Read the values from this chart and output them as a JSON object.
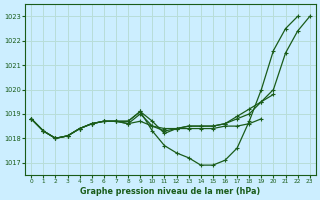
{
  "title": "Graphe pression niveau de la mer (hPa)",
  "bg_color": "#cceeff",
  "grid_color": "#b8ddd8",
  "line_color": "#1a5c1a",
  "xlim": [
    -0.5,
    23.5
  ],
  "ylim": [
    1016.5,
    1023.5
  ],
  "yticks": [
    1017,
    1018,
    1019,
    1020,
    1021,
    1022,
    1023
  ],
  "xticks": [
    0,
    1,
    2,
    3,
    4,
    5,
    6,
    7,
    8,
    9,
    10,
    11,
    12,
    13,
    14,
    15,
    16,
    17,
    18,
    19,
    20,
    21,
    22,
    23
  ],
  "series": [
    {
      "x": [
        0,
        1,
        2,
        3,
        4,
        5,
        6,
        7,
        8,
        9,
        10,
        11,
        12,
        13,
        14,
        15,
        16,
        17,
        18,
        19,
        20,
        21,
        22,
        23
      ],
      "y": [
        1018.8,
        1018.3,
        1018.0,
        1018.1,
        1018.4,
        1018.6,
        1018.7,
        1018.7,
        1018.7,
        1019.1,
        1018.7,
        1018.2,
        1018.4,
        1018.5,
        1018.5,
        1018.5,
        1018.6,
        1018.8,
        1019.0,
        1019.5,
        1020.0,
        1021.5,
        1022.4,
        1023.0
      ]
    },
    {
      "x": [
        0,
        1,
        2,
        3,
        4,
        5,
        6,
        7,
        8,
        9,
        10,
        11,
        12,
        13,
        14,
        15,
        16,
        17,
        18,
        19,
        20,
        21,
        22
      ],
      "y": [
        1018.8,
        1018.3,
        1018.0,
        1018.1,
        1018.4,
        1018.6,
        1018.7,
        1018.7,
        1018.7,
        1019.1,
        1018.3,
        1017.7,
        1017.4,
        1017.2,
        1016.9,
        1016.9,
        1017.1,
        1017.6,
        1018.7,
        1020.0,
        1021.6,
        1022.5,
        1023.0
      ]
    },
    {
      "x": [
        0,
        1,
        2,
        3,
        4,
        5,
        6,
        7,
        8,
        9,
        10,
        11,
        12,
        13,
        14,
        15,
        16,
        17,
        18,
        19,
        20
      ],
      "y": [
        1018.8,
        1018.3,
        1018.0,
        1018.1,
        1018.4,
        1018.6,
        1018.7,
        1018.7,
        1018.6,
        1019.0,
        1018.5,
        1018.3,
        1018.4,
        1018.5,
        1018.5,
        1018.5,
        1018.6,
        1018.9,
        1019.2,
        1019.5,
        1019.8
      ]
    },
    {
      "x": [
        0,
        1,
        2,
        3,
        4,
        5,
        6,
        7,
        8,
        9,
        10,
        11,
        12,
        13,
        14,
        15,
        16,
        17,
        18,
        19
      ],
      "y": [
        1018.8,
        1018.3,
        1018.0,
        1018.1,
        1018.4,
        1018.6,
        1018.7,
        1018.7,
        1018.6,
        1018.7,
        1018.5,
        1018.4,
        1018.4,
        1018.4,
        1018.4,
        1018.4,
        1018.5,
        1018.5,
        1018.6,
        1018.8
      ]
    }
  ]
}
